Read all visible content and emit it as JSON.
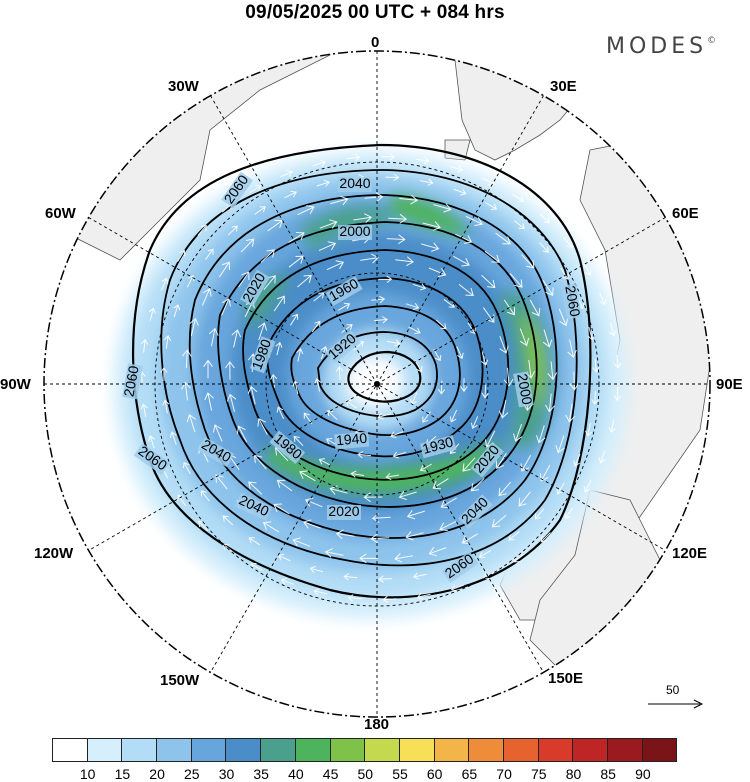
{
  "title": "09/05/2025  00 UTC  + 084 hrs",
  "brand": "MODES",
  "brand_mark": "©",
  "longitude_labels": {
    "lon_0": "0",
    "lon_30e": "30E",
    "lon_60e": "60E",
    "lon_90e": "90E",
    "lon_120e": "120E",
    "lon_150e": "150E",
    "lon_180": "180",
    "lon_150w": "150W",
    "lon_120w": "120W",
    "lon_90w": "90W",
    "lon_60w": "60W",
    "lon_30w": "30W"
  },
  "contour_labels": [
    "2060",
    "2040",
    "2020",
    "2000",
    "1980",
    "1960",
    "1940",
    "1920"
  ],
  "contour_label_items": [
    {
      "text": "2060",
      "key": "c1"
    },
    {
      "text": "2040",
      "key": "c2"
    },
    {
      "text": "2000",
      "key": "c3"
    },
    {
      "text": "2020",
      "key": "c4"
    },
    {
      "text": "1960",
      "key": "c5"
    },
    {
      "text": "1980",
      "key": "c6"
    },
    {
      "text": "1920",
      "key": "c7"
    },
    {
      "text": "2060",
      "key": "c8"
    },
    {
      "text": "2000",
      "key": "c9"
    },
    {
      "text": "2060",
      "key": "c10"
    },
    {
      "text": "2060",
      "key": "c11"
    },
    {
      "text": "2040",
      "key": "c12"
    },
    {
      "text": "1980",
      "key": "c13"
    },
    {
      "text": "1940",
      "key": "c14"
    },
    {
      "text": "1930",
      "key": "c15"
    },
    {
      "text": "2020",
      "key": "c16"
    },
    {
      "text": "2040",
      "key": "c17"
    },
    {
      "text": "2020",
      "key": "c18"
    },
    {
      "text": "2040",
      "key": "c19"
    },
    {
      "text": "2060",
      "key": "c20"
    }
  ],
  "reference_vector": "50",
  "legend": {
    "labels": [
      "10",
      "15",
      "20",
      "25",
      "30",
      "35",
      "40",
      "45",
      "50",
      "55",
      "60",
      "65",
      "70",
      "75",
      "80",
      "85",
      "90"
    ],
    "colors": [
      "#ffffff",
      "#d6effc",
      "#b3ddf6",
      "#8ec4ec",
      "#67a6dd",
      "#4b8dc8",
      "#4aa08c",
      "#4db45d",
      "#7fc24a",
      "#c5d94e",
      "#f7df57",
      "#f4b548",
      "#ee8c3a",
      "#e6622f",
      "#d93b2b",
      "#c02526",
      "#9a1a1f",
      "#7a1418"
    ]
  },
  "colors": {
    "land": "#efefef",
    "contour": "#000000",
    "wind_vector": "#ffffff",
    "grid": "#000000"
  }
}
